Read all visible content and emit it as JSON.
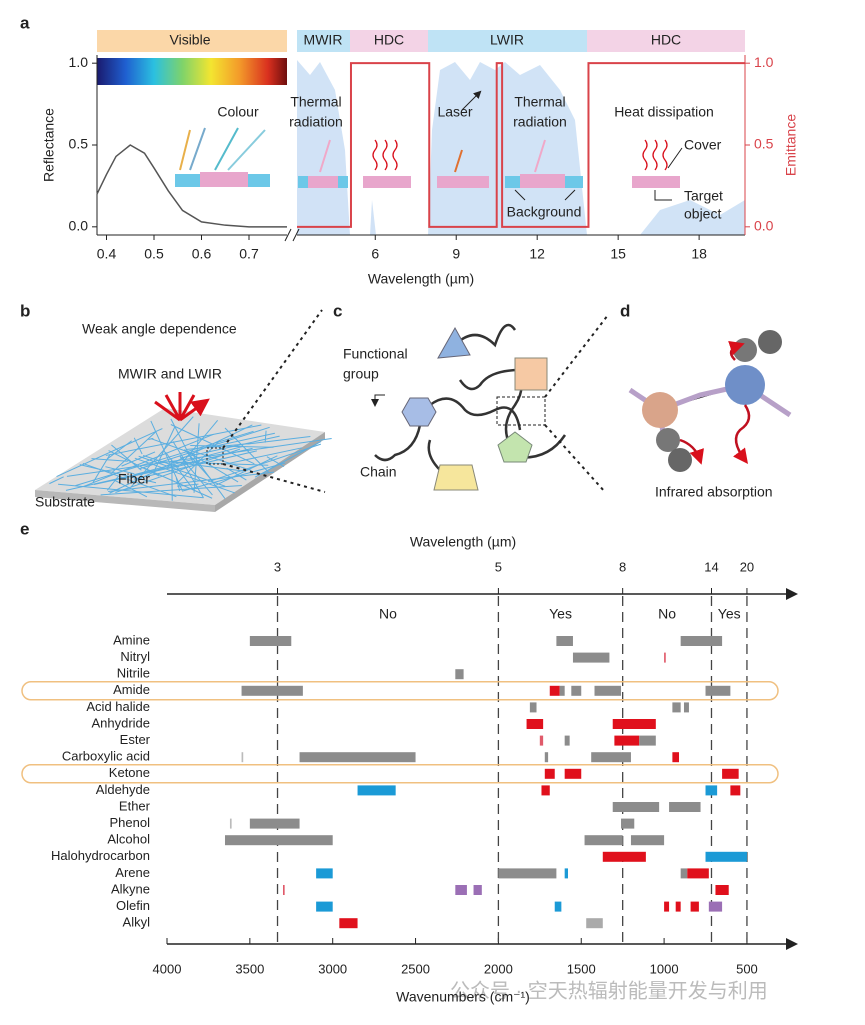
{
  "panel_labels": [
    "a",
    "b",
    "c",
    "d",
    "e"
  ],
  "panel_a": {
    "type": "line",
    "bands": [
      "Visible",
      "MWIR",
      "HDC",
      "LWIR",
      "HDC"
    ],
    "ylabel": "Reflectance",
    "y2label": "Emittance",
    "xlabel": "Wavelength (µm)",
    "xlim": [
      0.38,
      0.78
    ],
    "xticks": [
      0.4,
      0.5,
      0.6,
      0.7
    ],
    "x2lim": [
      3.1,
      19.7
    ],
    "x2ticks": [
      6,
      9,
      12,
      15,
      18
    ],
    "ylim": [
      -0.05,
      1.05
    ],
    "yticks": [
      {
        "value": 0,
        "label": "0.0"
      },
      {
        "value": 0.5,
        "label": "0.5"
      },
      {
        "value": 1,
        "label": "1.0"
      }
    ],
    "y2lim": [
      -0.05,
      1.05
    ],
    "y2ticks": [
      {
        "value": 0,
        "label": "0.0"
      },
      {
        "value": 0.5,
        "label": "0.5"
      },
      {
        "value": 1,
        "label": "1.0"
      }
    ],
    "series": [
      {
        "name": "Reflectance",
        "color": "#555555",
        "x": [
          0.38,
          0.4,
          0.42,
          0.45,
          0.48,
          0.5,
          0.53,
          0.56,
          0.6,
          0.65,
          0.7,
          0.78
        ],
        "values": [
          0.2,
          0.32,
          0.43,
          0.5,
          0.45,
          0.36,
          0.22,
          0.1,
          0.03,
          0.01,
          0,
          0
        ]
      },
      {
        "name": "Emittance",
        "color": "#d9434a",
        "axis": "y2",
        "x": [
          3.1,
          5.1,
          5.1,
          8,
          8,
          10.5,
          10.5,
          10.7,
          10.7,
          13.9,
          13.9,
          19.7
        ],
        "values": [
          0,
          0,
          1,
          1,
          0,
          0,
          1,
          1,
          0,
          0,
          1,
          1
        ]
      }
    ],
    "annotations": {
      "colour": "Colour",
      "thermal1": [
        "Thermal",
        "radiation"
      ],
      "laser": "Laser",
      "thermal2": [
        "Thermal",
        "radiation"
      ],
      "heat": "Heat dissipation",
      "cover": "Cover",
      "background": "Background",
      "target": [
        "Target",
        "object"
      ]
    }
  },
  "panel_b": {
    "title": "Weak angle dependence",
    "emission": "MWIR and LWIR",
    "fiber": "Fiber",
    "substrate": "Substrate"
  },
  "panel_c": {
    "functional_group": [
      "Functional",
      "group"
    ],
    "chain": "Chain"
  },
  "panel_d": {
    "label": "Infrared absorption"
  },
  "panel_e": {
    "type": "range_bar",
    "top_axis_label": "Wavelength (µm)",
    "xlabel": "Wavenumbers (cm⁻¹)",
    "xlim": [
      4000,
      210
    ],
    "xticks": [
      4000,
      3500,
      3000,
      2500,
      2000,
      1500,
      1000,
      500
    ],
    "top_ticks": [
      {
        "value": 3333,
        "label": "3"
      },
      {
        "value": 2000,
        "label": "5"
      },
      {
        "value": 1250,
        "label": "8"
      },
      {
        "value": 714,
        "label": "14"
      },
      {
        "value": 500,
        "label": "20"
      }
    ],
    "regions": [
      "No",
      "Yes",
      "No",
      "Yes"
    ],
    "highlighted": [
      "Amide",
      "Ketone"
    ],
    "rows": [
      {
        "name": "Amine",
        "bands": [
          [
            3500,
            3250,
            "#8c8c8c"
          ],
          [
            1650,
            1550,
            "#8c8c8c"
          ],
          [
            900,
            650,
            "#8c8c8c"
          ]
        ]
      },
      {
        "name": "Nitryl",
        "bands": [
          [
            1550,
            1330,
            "#8c8c8c"
          ],
          [
            1000,
            990,
            "#e05a6a"
          ]
        ]
      },
      {
        "name": "Nitrile",
        "bands": [
          [
            2260,
            2210,
            "#8c8c8c"
          ]
        ]
      },
      {
        "name": "Amide",
        "bands": [
          [
            3550,
            3180,
            "#8c8c8c"
          ],
          [
            1690,
            1630,
            "#e0101c"
          ],
          [
            1630,
            1600,
            "#8c8c8c"
          ],
          [
            1560,
            1500,
            "#8c8c8c"
          ],
          [
            1420,
            1260,
            "#8c8c8c"
          ],
          [
            750,
            600,
            "#8c8c8c"
          ]
        ]
      },
      {
        "name": "Acid halide",
        "bands": [
          [
            1810,
            1770,
            "#8c8c8c"
          ],
          [
            950,
            900,
            "#8c8c8c"
          ],
          [
            880,
            850,
            "#8c8c8c"
          ]
        ]
      },
      {
        "name": "Anhydride",
        "bands": [
          [
            1830,
            1730,
            "#e0101c"
          ],
          [
            1310,
            1050,
            "#e0101c"
          ]
        ]
      },
      {
        "name": "Ester",
        "bands": [
          [
            1750,
            1730,
            "#e05a6a"
          ],
          [
            1600,
            1570,
            "#8c8c8c"
          ],
          [
            1300,
            1150,
            "#e0101c"
          ],
          [
            1150,
            1050,
            "#8c8c8c"
          ]
        ]
      },
      {
        "name": "Carboxylic acid",
        "bands": [
          [
            3550,
            3540,
            "#bbbbbb"
          ],
          [
            3200,
            2500,
            "#8c8c8c"
          ],
          [
            1720,
            1700,
            "#8c8c8c"
          ],
          [
            1440,
            1200,
            "#8c8c8c"
          ],
          [
            950,
            910,
            "#e0101c"
          ]
        ]
      },
      {
        "name": "Ketone",
        "bands": [
          [
            1720,
            1660,
            "#e0101c"
          ],
          [
            1600,
            1500,
            "#e0101c"
          ],
          [
            650,
            550,
            "#e0101c"
          ]
        ]
      },
      {
        "name": "Aldehyde",
        "bands": [
          [
            2850,
            2620,
            "#1b9ad6"
          ],
          [
            1740,
            1690,
            "#e0101c"
          ],
          [
            750,
            680,
            "#1b9ad6"
          ],
          [
            600,
            540,
            "#e0101c"
          ]
        ]
      },
      {
        "name": "Ether",
        "bands": [
          [
            1310,
            1030,
            "#8c8c8c"
          ],
          [
            970,
            780,
            "#8c8c8c"
          ]
        ]
      },
      {
        "name": "Phenol",
        "bands": [
          [
            3620,
            3610,
            "#bbbbbb"
          ],
          [
            3500,
            3200,
            "#8c8c8c"
          ],
          [
            1260,
            1180,
            "#8c8c8c"
          ]
        ]
      },
      {
        "name": "Alcohol",
        "bands": [
          [
            3650,
            3000,
            "#8c8c8c"
          ],
          [
            1480,
            1250,
            "#8c8c8c"
          ],
          [
            1200,
            1000,
            "#8c8c8c"
          ]
        ]
      },
      {
        "name": "Halohydrocarbon",
        "bands": [
          [
            1370,
            1110,
            "#e0101c"
          ],
          [
            750,
            500,
            "#1b9ad6"
          ]
        ]
      },
      {
        "name": "Arene",
        "bands": [
          [
            3100,
            3000,
            "#1b9ad6"
          ],
          [
            2000,
            1650,
            "#8c8c8c"
          ],
          [
            1600,
            1580,
            "#1b9ad6"
          ],
          [
            900,
            860,
            "#8c8c8c"
          ],
          [
            860,
            730,
            "#e0101c"
          ]
        ]
      },
      {
        "name": "Alkyne",
        "bands": [
          [
            3300,
            3290,
            "#e05a6a"
          ],
          [
            2260,
            2190,
            "#9b6fb5"
          ],
          [
            2150,
            2100,
            "#9b6fb5"
          ],
          [
            690,
            610,
            "#e0101c"
          ]
        ]
      },
      {
        "name": "Olefin",
        "bands": [
          [
            3100,
            3000,
            "#1b9ad6"
          ],
          [
            1660,
            1620,
            "#1b9ad6"
          ],
          [
            1000,
            970,
            "#e0101c"
          ],
          [
            930,
            900,
            "#e0101c"
          ],
          [
            840,
            790,
            "#e0101c"
          ],
          [
            730,
            650,
            "#9b6fb5"
          ]
        ]
      },
      {
        "name": "Alkyl",
        "bands": [
          [
            2960,
            2850,
            "#e0101c"
          ],
          [
            1470,
            1370,
            "#aaaaaa"
          ]
        ]
      }
    ]
  },
  "watermark": "公众号 · 空天热辐射能量开发与利用"
}
